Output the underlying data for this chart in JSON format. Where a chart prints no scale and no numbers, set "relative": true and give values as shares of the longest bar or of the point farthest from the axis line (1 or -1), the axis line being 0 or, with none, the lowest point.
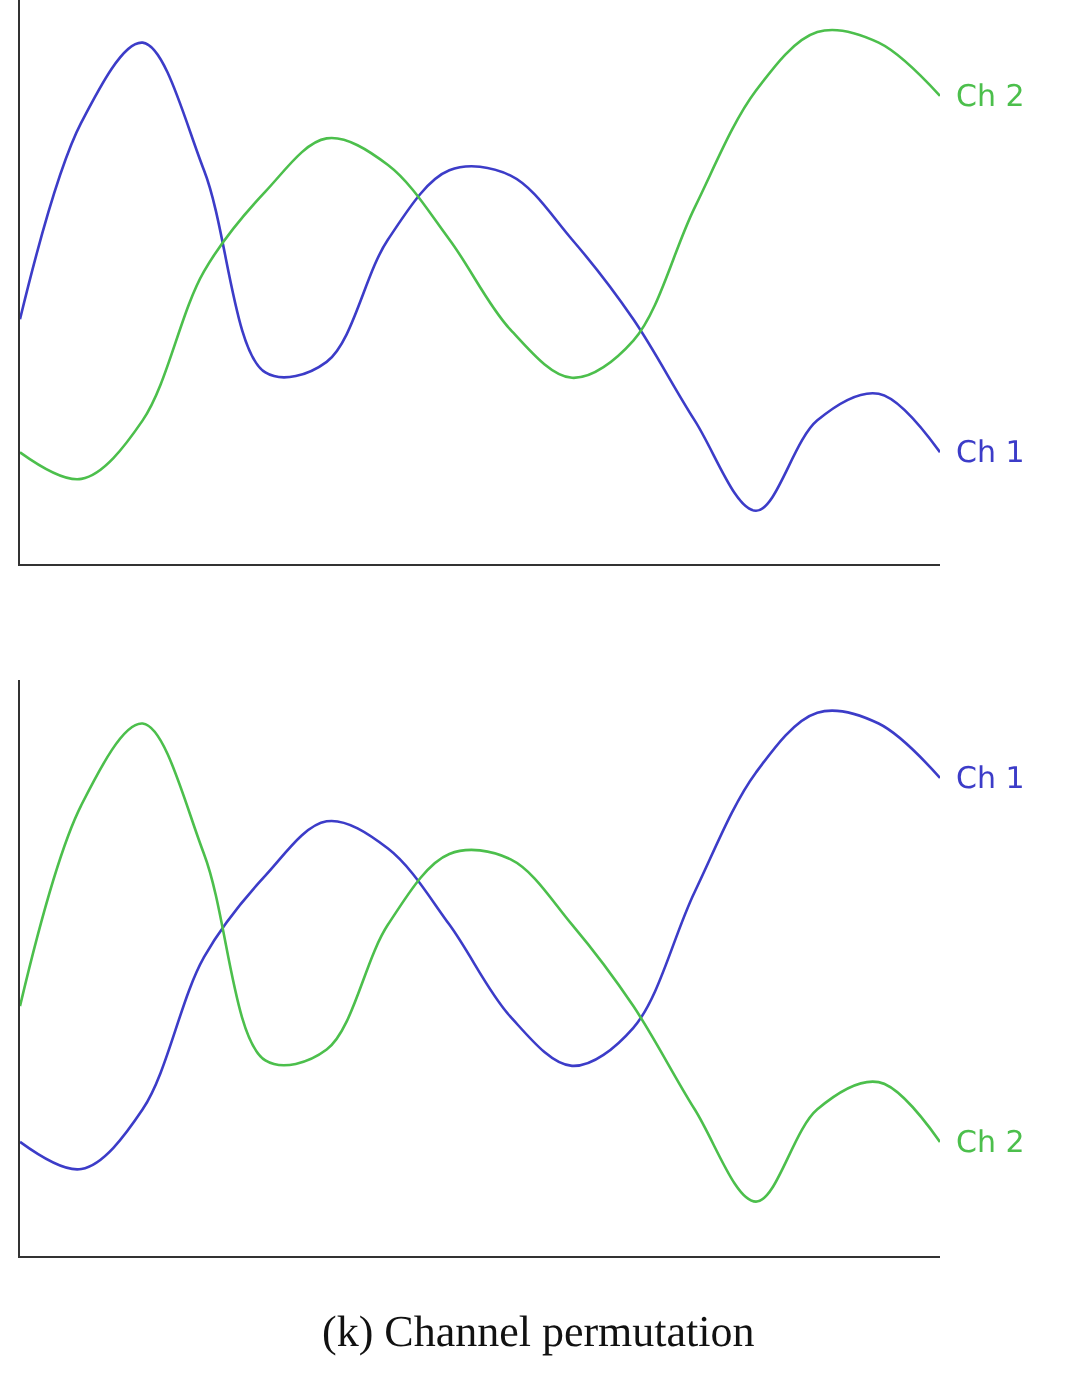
{
  "chart_data": [
    {
      "type": "line",
      "relative": true,
      "categories": [
        null,
        null,
        null,
        null,
        null,
        null,
        null,
        null,
        null,
        null,
        null,
        null,
        null,
        null,
        null,
        null
      ],
      "series": [
        {
          "name": "Ch 1",
          "color": "#3c3cc8",
          "values": [
            0.46,
            0.83,
            0.98,
            0.74,
            0.36,
            0.38,
            0.61,
            0.74,
            0.73,
            0.61,
            0.46,
            0.27,
            0.1,
            0.27,
            0.32,
            0.21
          ]
        },
        {
          "name": "Ch 2",
          "color": "#4cbf4c",
          "values": [
            0.21,
            0.16,
            0.27,
            0.55,
            0.7,
            0.8,
            0.75,
            0.61,
            0.44,
            0.35,
            0.42,
            0.67,
            0.89,
            1.0,
            0.98,
            0.88
          ]
        }
      ]
    },
    {
      "type": "line",
      "relative": true,
      "categories": [
        null,
        null,
        null,
        null,
        null,
        null,
        null,
        null,
        null,
        null,
        null,
        null,
        null,
        null,
        null,
        null
      ],
      "series": [
        {
          "name": "Ch 1",
          "color": "#3c3cc8",
          "values": [
            0.21,
            0.16,
            0.27,
            0.55,
            0.7,
            0.8,
            0.75,
            0.61,
            0.44,
            0.35,
            0.42,
            0.67,
            0.89,
            1.0,
            0.98,
            0.88
          ]
        },
        {
          "name": "Ch 2",
          "color": "#4cbf4c",
          "values": [
            0.46,
            0.83,
            0.98,
            0.74,
            0.36,
            0.38,
            0.61,
            0.74,
            0.73,
            0.61,
            0.46,
            0.27,
            0.1,
            0.27,
            0.32,
            0.21
          ]
        }
      ],
      "annotations": [
        "(k) Channel permutation"
      ]
    }
  ]
}
